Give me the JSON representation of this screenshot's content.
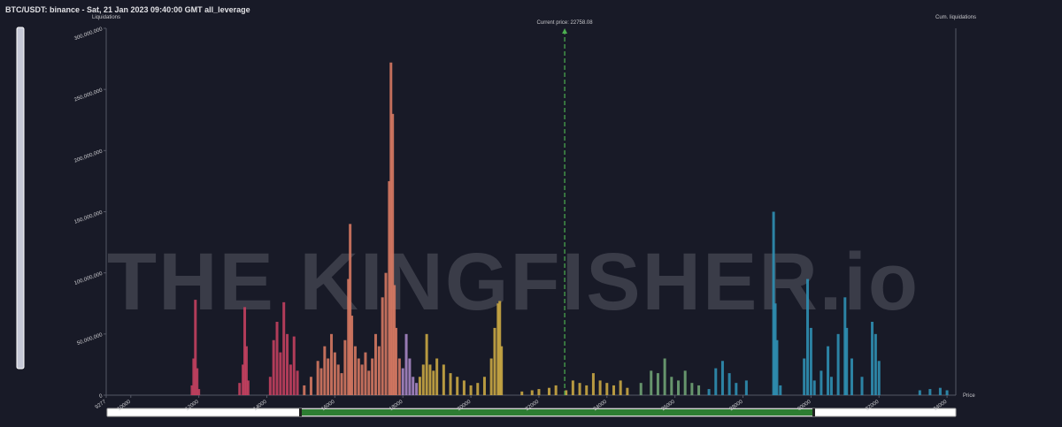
{
  "chart_data": {
    "type": "bar",
    "title": "BTC/USDT: binance - Sat, 21 Jan 2023 09:40:00 GMT all_leverage",
    "y_label": "Liquidations",
    "y2_label": "Cum. liquidations",
    "x_label": "Price",
    "watermark": "THE KINGFISHER.io",
    "current_price": {
      "value": 22758.08,
      "label": "Current price: 22758.08"
    },
    "xlim": [
      9277,
      34258
    ],
    "xticks": [
      9277,
      10000,
      12000,
      14000,
      16000,
      18000,
      20000,
      22000,
      24000,
      26000,
      28000,
      30000,
      32000,
      34000
    ],
    "ylim": [
      0,
      300000000
    ],
    "yticks": [
      0,
      {
        "value": 50000000,
        "label": "50,000,000"
      },
      {
        "value": 100000000,
        "label": "100,000,000"
      },
      {
        "value": 150000000,
        "label": "150,000,000"
      },
      {
        "value": 200000000,
        "label": "200,000,000"
      },
      {
        "value": 250000000,
        "label": "250,000,000"
      },
      {
        "value": 300000000,
        "label": "300,000,000"
      }
    ],
    "series": [
      {
        "color": "#c2405f",
        "x": [
          11800,
          11850,
          11900,
          11950,
          12000,
          13200,
          13300,
          13350,
          13400,
          13450,
          14100,
          14200,
          14300,
          14400,
          14500,
          14600,
          14700,
          14800,
          14900
        ],
        "values": [
          8000000,
          30000000,
          78000000,
          22000000,
          5000000,
          10000000,
          25000000,
          72000000,
          40000000,
          12000000,
          15000000,
          45000000,
          60000000,
          35000000,
          76000000,
          50000000,
          25000000,
          48000000,
          20000000
        ]
      },
      {
        "color": "#d47862",
        "x": [
          15100,
          15300,
          15500,
          15600,
          15700,
          15800,
          15900,
          16000,
          16100,
          16200,
          16300,
          16400,
          16450,
          16500,
          16600,
          16700,
          16800,
          16900,
          17000,
          17100,
          17200,
          17300,
          17400,
          17500,
          17600,
          17650,
          17700,
          17750,
          17800,
          17900
        ],
        "values": [
          8000000,
          15000000,
          28000000,
          22000000,
          40000000,
          30000000,
          50000000,
          35000000,
          25000000,
          18000000,
          45000000,
          95000000,
          140000000,
          65000000,
          40000000,
          30000000,
          25000000,
          35000000,
          20000000,
          30000000,
          50000000,
          40000000,
          80000000,
          100000000,
          175000000,
          272000000,
          230000000,
          90000000,
          55000000,
          30000000
        ]
      },
      {
        "color": "#a686c4",
        "x": [
          18000,
          18100,
          18200,
          18300,
          18400
        ],
        "values": [
          22000000,
          50000000,
          30000000,
          15000000,
          10000000
        ]
      },
      {
        "color": "#c9a744",
        "x": [
          18500,
          18600,
          18700,
          18800,
          18900,
          19000,
          19200,
          19400,
          19600,
          19800,
          20000,
          20200,
          20400,
          20600,
          20700,
          20800,
          20850,
          20900,
          21500,
          21800,
          22000,
          22300,
          22500,
          22800,
          23000,
          23200,
          23400,
          23600,
          23800,
          24000,
          24200,
          24400,
          24600
        ],
        "values": [
          15000000,
          25000000,
          50000000,
          25000000,
          20000000,
          30000000,
          25000000,
          18000000,
          15000000,
          12000000,
          8000000,
          10000000,
          15000000,
          30000000,
          55000000,
          75000000,
          77000000,
          40000000,
          3000000,
          4000000,
          5000000,
          6000000,
          8000000,
          4000000,
          12000000,
          10000000,
          8000000,
          18000000,
          12000000,
          10000000,
          8000000,
          12000000,
          6000000
        ]
      },
      {
        "color": "#6fa274",
        "x": [
          25000,
          25300,
          25500,
          25700,
          25900,
          26100,
          26300,
          26500,
          26700
        ],
        "values": [
          10000000,
          20000000,
          18000000,
          30000000,
          15000000,
          12000000,
          20000000,
          10000000,
          8000000
        ]
      },
      {
        "color": "#2f8fb3",
        "x": [
          27000,
          27200,
          27400,
          27600,
          27800,
          28100,
          28900,
          28950,
          29000,
          29100,
          29800,
          29900,
          30000,
          30100,
          30300,
          30500,
          30600,
          30800,
          31000,
          31050,
          31200,
          31500,
          31800,
          31900,
          32000,
          33200,
          33500,
          33800,
          34000
        ],
        "values": [
          5000000,
          22000000,
          28000000,
          18000000,
          10000000,
          12000000,
          150000000,
          75000000,
          45000000,
          8000000,
          30000000,
          95000000,
          55000000,
          12000000,
          20000000,
          40000000,
          15000000,
          50000000,
          80000000,
          55000000,
          30000000,
          15000000,
          60000000,
          50000000,
          28000000,
          4000000,
          5000000,
          6000000,
          4000000
        ]
      }
    ]
  }
}
